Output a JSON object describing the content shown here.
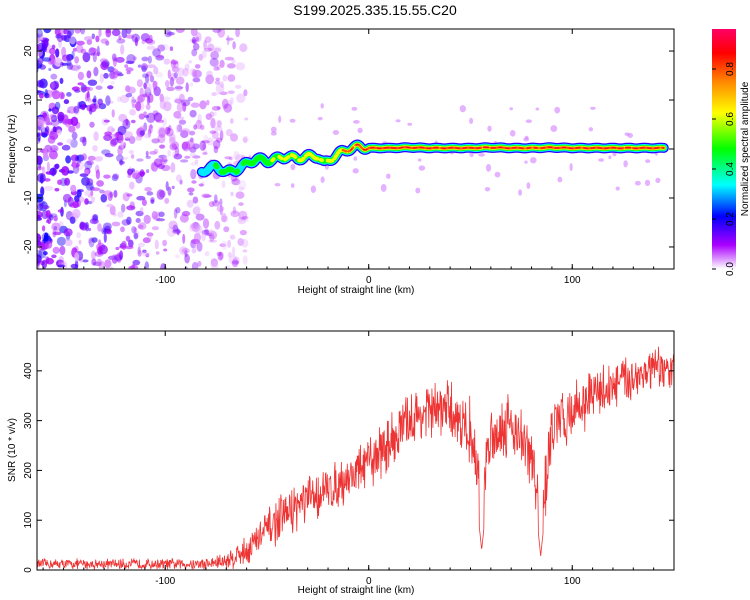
{
  "page": {
    "title": "S199.2025.335.15.55.C20"
  },
  "chart_data": [
    {
      "type": "heatmap",
      "title": "S199.2025.335.15.55.C20",
      "xlabel": "Height of straight line (km)",
      "ylabel": "Frequency (Hz)",
      "xlim": [
        -163,
        150
      ],
      "ylim": [
        -24.5,
        24.5
      ],
      "x_ticks": [
        -100,
        0,
        100
      ],
      "y_ticks": [
        20,
        10,
        0,
        -10,
        -20
      ],
      "colorbar": {
        "label": "Normalized spectral amplitude",
        "range": [
          0,
          0.96
        ],
        "ticks": [
          0.0,
          0.2,
          0.4,
          0.6,
          0.8
        ],
        "colors": [
          "#ffffff",
          "#aa00ff",
          "#0000ff",
          "#00ffff",
          "#00ff00",
          "#ffff00",
          "#ff8800",
          "#ff0000",
          "#ff0066"
        ]
      },
      "noise_region_x": [
        -163,
        -60
      ],
      "ridge": {
        "description": "dominant frequency vs height",
        "x": [
          -82,
          -75,
          -70,
          -65,
          -60,
          -55,
          -50,
          -45,
          -40,
          -35,
          -30,
          -25,
          -22,
          -20,
          -15,
          -10,
          -5,
          0,
          10,
          20,
          30,
          40,
          50,
          60,
          70,
          80,
          90,
          100,
          110,
          120,
          130,
          145
        ],
        "freq": [
          -4.5,
          -3.5,
          -4.8,
          -4.2,
          -3.0,
          -2.0,
          -2.5,
          -2.0,
          -1.5,
          -2.0,
          -1.5,
          -1.5,
          -3.0,
          -2.5,
          -1.0,
          0.0,
          0.5,
          0.2,
          0.2,
          0.3,
          0.2,
          0.2,
          0.2,
          0.3,
          0.2,
          0.2,
          0.3,
          0.2,
          0.2,
          0.2,
          0.2,
          0.2
        ],
        "amplitude": [
          0.3,
          0.4,
          0.45,
          0.4,
          0.45,
          0.5,
          0.5,
          0.55,
          0.6,
          0.6,
          0.65,
          0.65,
          0.5,
          0.6,
          0.7,
          0.8,
          0.85,
          0.92,
          0.92,
          0.9,
          0.9,
          0.9,
          0.88,
          0.9,
          0.9,
          0.85,
          0.9,
          0.9,
          0.9,
          0.9,
          0.9,
          0.85
        ]
      }
    },
    {
      "type": "line",
      "xlabel": "Height of straight line (km)",
      "ylabel": "SNR (10 * v/v)",
      "xlim": [
        -163,
        150
      ],
      "ylim": [
        0,
        480
      ],
      "x_ticks": [
        -100,
        0,
        100
      ],
      "y_ticks": [
        0,
        100,
        200,
        300,
        400
      ],
      "series": [
        {
          "name": "SNR",
          "color": "#ee3333",
          "envelope_x": [
            -163,
            -140,
            -120,
            -100,
            -80,
            -70,
            -60,
            -50,
            -40,
            -30,
            -20,
            -10,
            0,
            10,
            20,
            30,
            40,
            50,
            55,
            60,
            70,
            80,
            85,
            90,
            100,
            110,
            120,
            130,
            140,
            150
          ],
          "envelope_mean": [
            12,
            12,
            12,
            12,
            12,
            18,
            40,
            80,
            115,
            140,
            160,
            185,
            215,
            255,
            300,
            320,
            320,
            280,
            160,
            270,
            300,
            220,
            120,
            280,
            320,
            350,
            370,
            390,
            400,
            400
          ],
          "envelope_spread": [
            10,
            10,
            10,
            10,
            12,
            18,
            30,
            40,
            45,
            45,
            45,
            45,
            50,
            55,
            55,
            55,
            55,
            60,
            60,
            60,
            60,
            70,
            80,
            60,
            55,
            50,
            50,
            45,
            45,
            40
          ],
          "dips": [
            {
              "x": 55.5,
              "min": 40
            },
            {
              "x": 84.5,
              "min": 28
            }
          ]
        }
      ]
    }
  ]
}
